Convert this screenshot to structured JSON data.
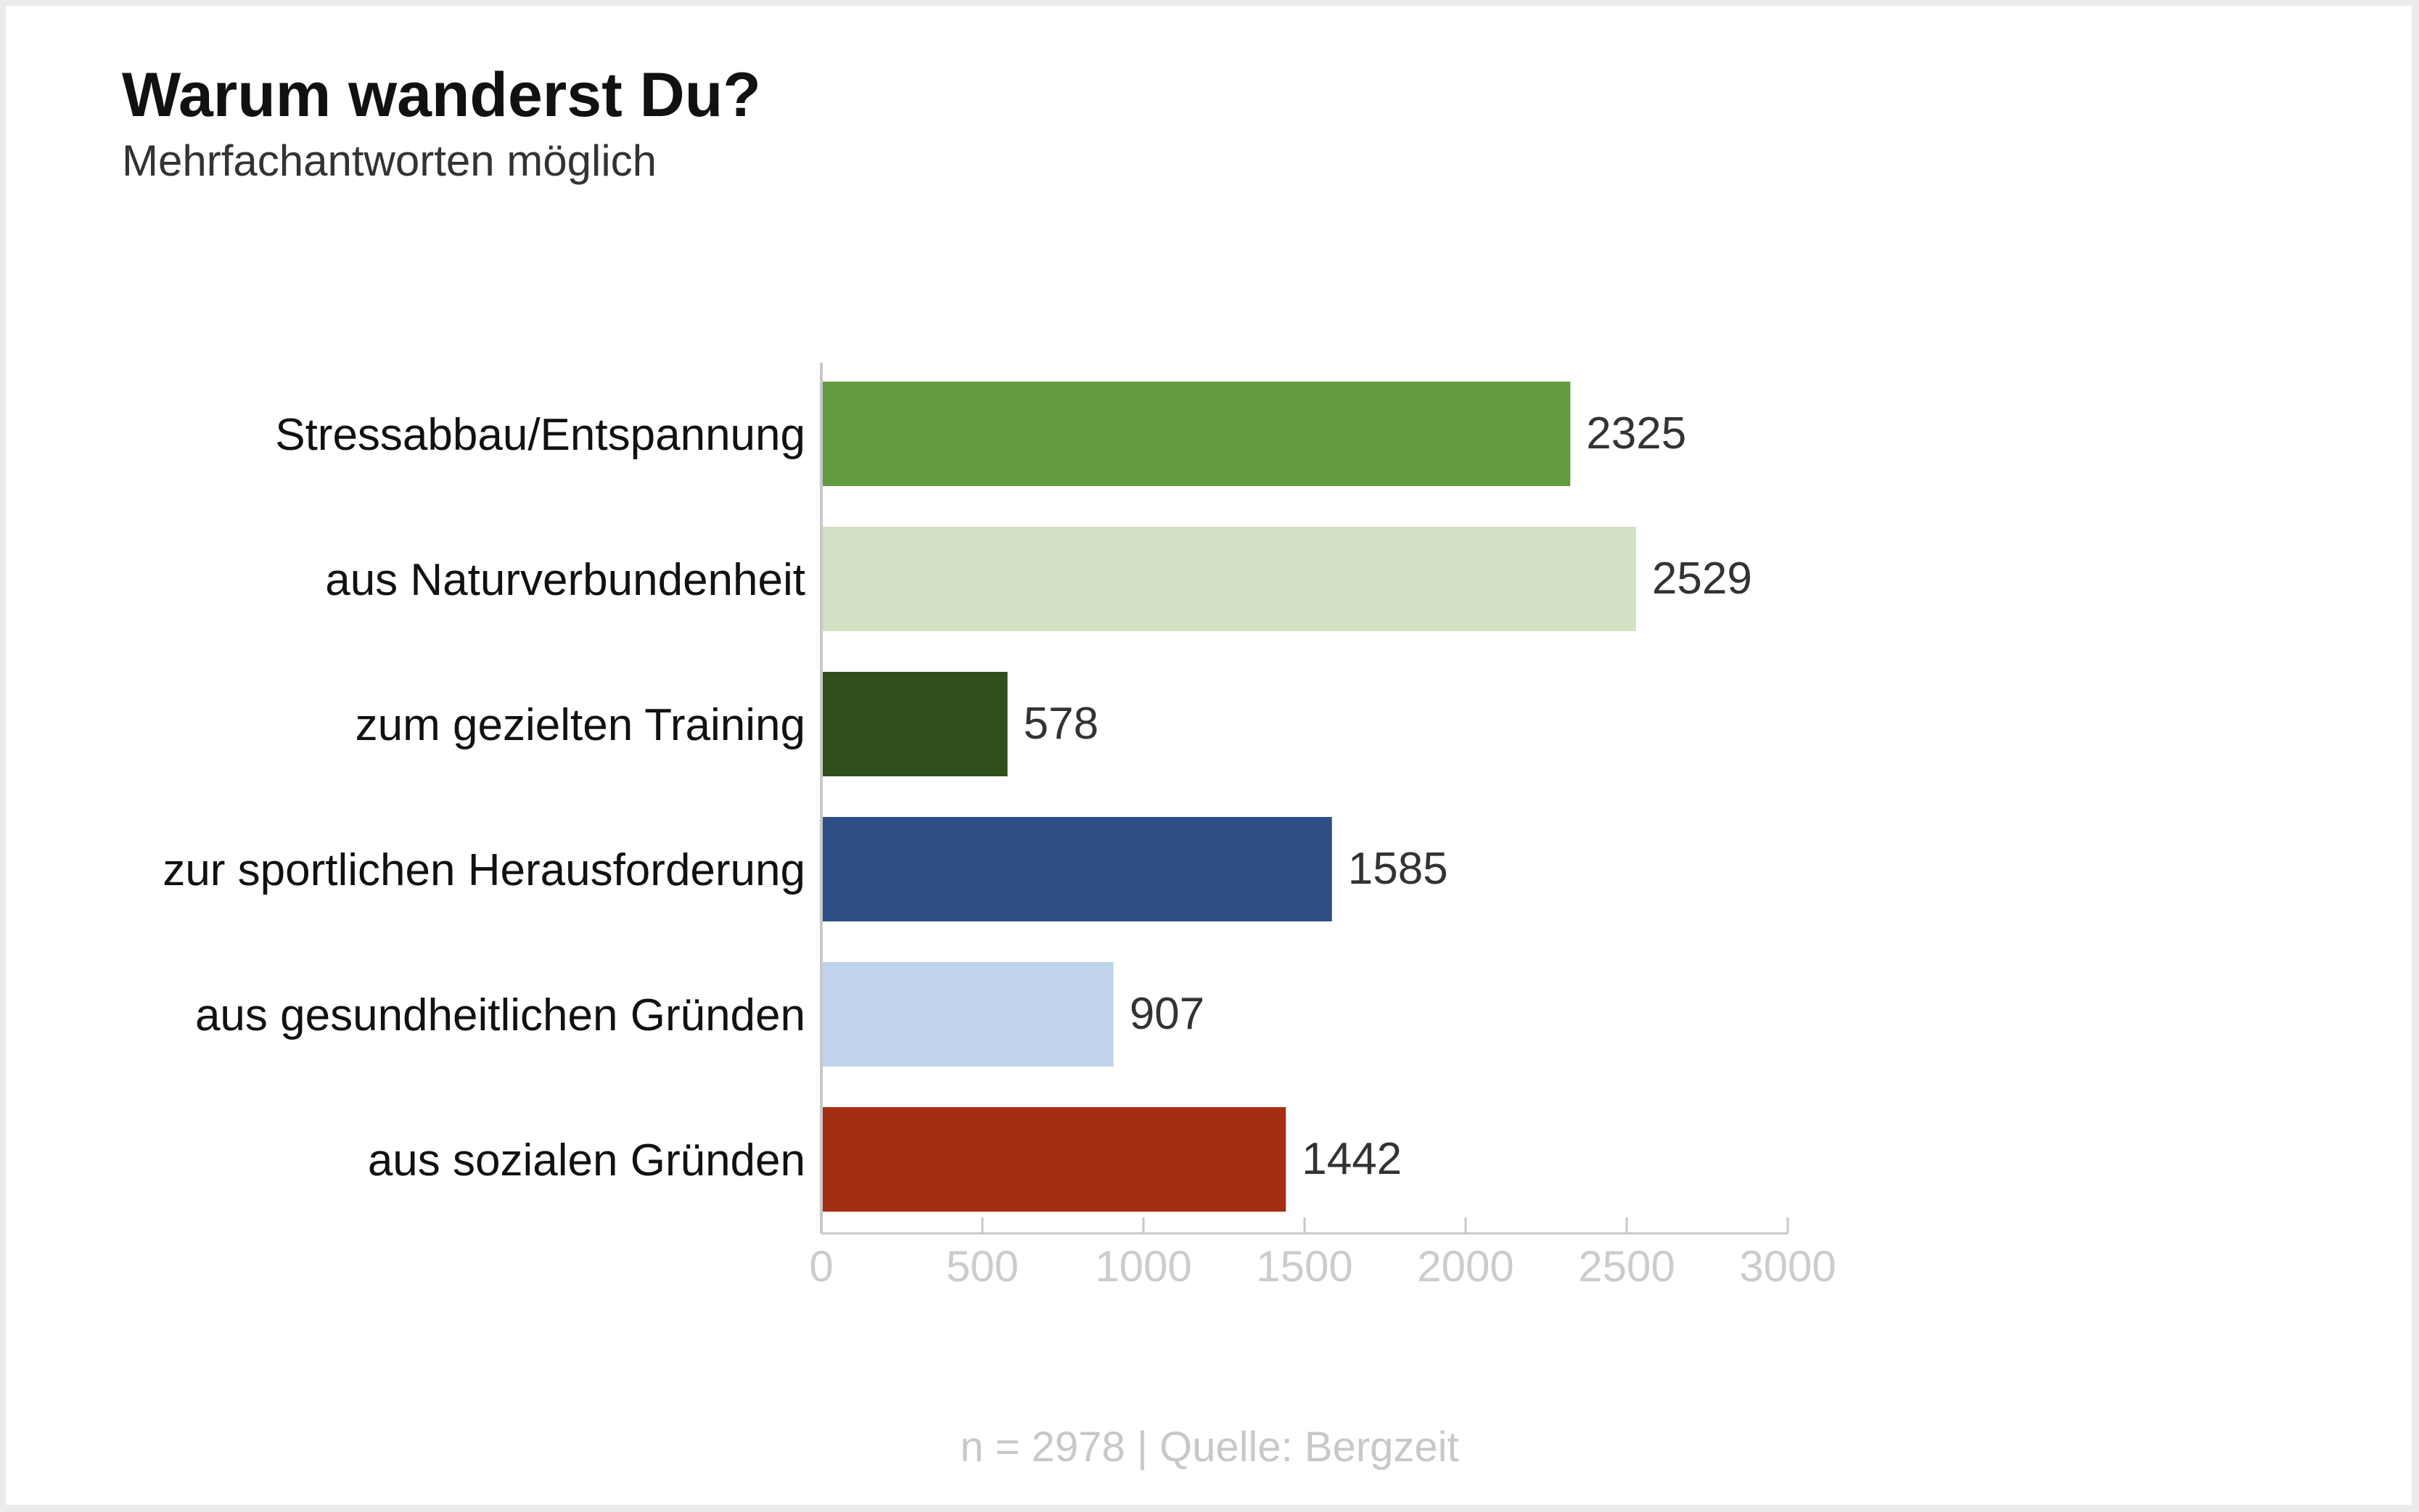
{
  "chart_data": {
    "type": "bar",
    "orientation": "horizontal",
    "title": "Warum wanderst Du?",
    "subtitle": "Mehrfachantworten möglich",
    "categories": [
      "Stressabbau/Entspannung",
      "aus Naturverbundenheit",
      "zum gezielten Training",
      "zur sportlichen Herausforderung",
      "aus gesundheitlichen Gründen",
      "aus sozialen Gründen"
    ],
    "values": [
      2325,
      2529,
      578,
      1585,
      907,
      1442
    ],
    "colors": [
      "#629a3f",
      "#d3e0c3",
      "#314f1a",
      "#2f4e84",
      "#bfd4ec",
      "#a42e11"
    ],
    "xlim": [
      0,
      3000
    ],
    "xticks": [
      "0",
      "500",
      "1000",
      "1500",
      "2000",
      "2500",
      "3000"
    ],
    "xlabel": "",
    "ylabel": "",
    "grid": false,
    "legend": "none"
  },
  "footer": "n = 2978 | Quelle: Bergzeit"
}
